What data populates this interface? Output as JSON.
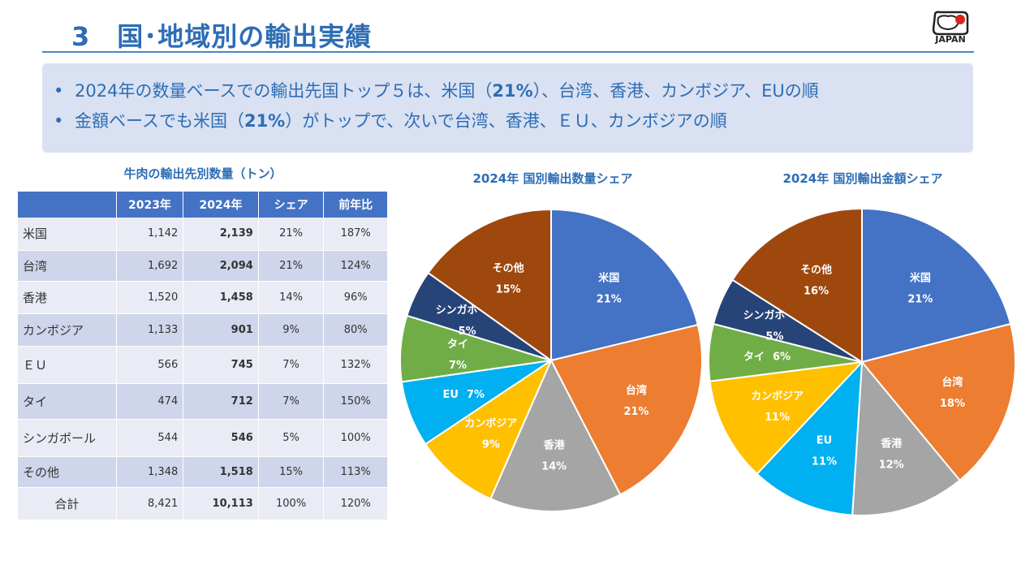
{
  "header": {
    "title": "3　国･地域別の輸出実績",
    "logo_text": "JAPAN"
  },
  "summary": {
    "bullet_marker": "•",
    "line1_pre": "2024年の数量ベースでの輸出先国トップ５は、米国（",
    "line1_bold": "21%",
    "line1_post": "）、台湾、香港、カンボジア、EUの順",
    "line2_pre": "金額ベースでも米国（",
    "line2_bold": "21%",
    "line2_post": "）がトップで、次いで台湾、香港、ＥＵ、カンボジアの順"
  },
  "table": {
    "title": "牛肉の輸出先別数量（トン）",
    "headers": [
      "",
      "2023年",
      "2024年",
      "シェア",
      "前年比"
    ],
    "rows": [
      {
        "name": "米国",
        "y2023": "1,142",
        "y2024": "2,139",
        "share": "21%",
        "yoy": "187%"
      },
      {
        "name": "台湾",
        "y2023": "1,692",
        "y2024": "2,094",
        "share": "21%",
        "yoy": "124%"
      },
      {
        "name": "香港",
        "y2023": "1,520",
        "y2024": "1,458",
        "share": "14%",
        "yoy": "96%"
      },
      {
        "name": "カンボジア",
        "y2023": "1,133",
        "y2024": "901",
        "share": "9%",
        "yoy": "80%"
      },
      {
        "name": "ＥＵ",
        "y2023": "566",
        "y2024": "745",
        "share": "7%",
        "yoy": "132%"
      },
      {
        "name": "タイ",
        "y2023": "474",
        "y2024": "712",
        "share": "7%",
        "yoy": "150%"
      },
      {
        "name": "シンガポール",
        "y2023": "544",
        "y2024": "546",
        "share": "5%",
        "yoy": "100%"
      },
      {
        "name": "その他",
        "y2023": "1,348",
        "y2024": "1,518",
        "share": "15%",
        "yoy": "113%"
      },
      {
        "name": "合計",
        "y2023": "8,421",
        "y2024": "10,113",
        "share": "100%",
        "yoy": "120%"
      }
    ]
  },
  "chart_data": [
    {
      "type": "pie",
      "title": "2024年 国別輸出数量シェア",
      "slices": [
        {
          "label": "米国",
          "value": 21,
          "pct_label": "21%",
          "color": "#4472C4"
        },
        {
          "label": "台湾",
          "value": 21,
          "pct_label": "21%",
          "color": "#ED7D31"
        },
        {
          "label": "香港",
          "value": 14,
          "pct_label": "14%",
          "color": "#A5A5A5"
        },
        {
          "label": "カンボジア",
          "value": 9,
          "pct_label": "9%",
          "color": "#FFC000"
        },
        {
          "label": "EU",
          "value": 7,
          "pct_label": "7%",
          "color": "#00B0F0",
          "inline": true
        },
        {
          "label": "タイ",
          "value": 7,
          "pct_label": "7%",
          "color": "#70AD47"
        },
        {
          "label": "シンガポール",
          "value": 5,
          "pct_label": "5%",
          "color": "#264478"
        },
        {
          "label": "その他",
          "value": 15,
          "pct_label": "15%",
          "color": "#9E480E"
        }
      ]
    },
    {
      "type": "pie",
      "title": "2024年 国別輸出金額シェア",
      "slices": [
        {
          "label": "米国",
          "value": 21,
          "pct_label": "21%",
          "color": "#4472C4"
        },
        {
          "label": "台湾",
          "value": 18,
          "pct_label": "18%",
          "color": "#ED7D31"
        },
        {
          "label": "香港",
          "value": 12,
          "pct_label": "12%",
          "color": "#A5A5A5"
        },
        {
          "label": "EU",
          "value": 11,
          "pct_label": "11%",
          "color": "#00B0F0"
        },
        {
          "label": "カンボジア",
          "value": 11,
          "pct_label": "11%",
          "color": "#FFC000"
        },
        {
          "label": "タイ",
          "value": 6,
          "pct_label": "6%",
          "color": "#70AD47",
          "inline": true
        },
        {
          "label": "シンガポール",
          "value": 5,
          "pct_label": "5%",
          "color": "#264478"
        },
        {
          "label": "その他",
          "value": 16,
          "pct_label": "16%",
          "color": "#9E480E"
        }
      ]
    }
  ]
}
